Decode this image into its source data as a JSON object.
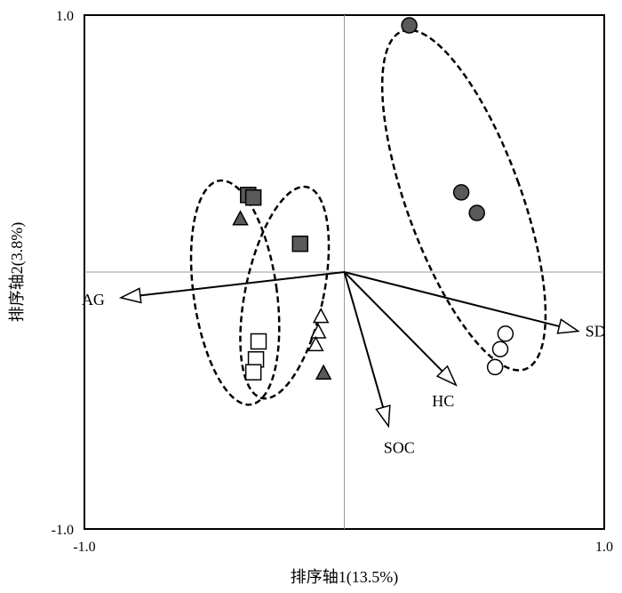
{
  "chart_data": {
    "type": "scatter",
    "title": "",
    "xlabel": "排序轴1(13.5%)",
    "ylabel": "排序轴2(3.8%)",
    "xlim": [
      -1.0,
      1.0
    ],
    "ylim": [
      -1.0,
      1.0
    ],
    "x_ticks": [
      "-1.0",
      "1.0"
    ],
    "y_ticks": [
      "1.0",
      "-1.0"
    ],
    "grid": false,
    "reference_lines": [
      0,
      0
    ],
    "colors": {
      "dark": "#5a5a5a",
      "light": "#ffffff",
      "line": "#000000",
      "axis_ref": "#9a9a9a"
    },
    "series": [
      {
        "marker": "circle",
        "fill": "dark",
        "points": [
          [
            0.25,
            0.96
          ],
          [
            0.45,
            0.31
          ],
          [
            0.51,
            0.23
          ]
        ]
      },
      {
        "marker": "circle",
        "fill": "light",
        "points": [
          [
            0.62,
            -0.24
          ],
          [
            0.6,
            -0.3
          ],
          [
            0.58,
            -0.37
          ]
        ]
      },
      {
        "marker": "square",
        "fill": "dark",
        "points": [
          [
            -0.37,
            0.3
          ],
          [
            -0.35,
            0.29
          ],
          [
            -0.17,
            0.11
          ]
        ]
      },
      {
        "marker": "square",
        "fill": "light",
        "points": [
          [
            -0.33,
            -0.27
          ],
          [
            -0.34,
            -0.34
          ],
          [
            -0.35,
            -0.39
          ]
        ]
      },
      {
        "marker": "triangle",
        "fill": "dark",
        "points": [
          [
            -0.4,
            0.21
          ],
          [
            -0.08,
            -0.39
          ]
        ]
      },
      {
        "marker": "triangle",
        "fill": "light",
        "points": [
          [
            -0.09,
            -0.17
          ],
          [
            -0.1,
            -0.23
          ],
          [
            -0.11,
            -0.28
          ]
        ]
      }
    ],
    "vectors": [
      {
        "label": "AG",
        "x": -0.86,
        "y": -0.1
      },
      {
        "label": "SD",
        "x": 0.9,
        "y": -0.23
      },
      {
        "label": "HC",
        "x": 0.43,
        "y": -0.44
      },
      {
        "label": "SOC",
        "x": 0.17,
        "y": -0.6
      }
    ],
    "ellipses": [
      {
        "cx": 0.46,
        "cy": 0.28,
        "rx": 0.22,
        "ry": 0.7,
        "angle": -20
      },
      {
        "cx": -0.42,
        "cy": -0.08,
        "rx": 0.16,
        "ry": 0.44,
        "angle": -8
      },
      {
        "cx": -0.23,
        "cy": -0.08,
        "rx": 0.15,
        "ry": 0.42,
        "angle": 12
      }
    ]
  }
}
